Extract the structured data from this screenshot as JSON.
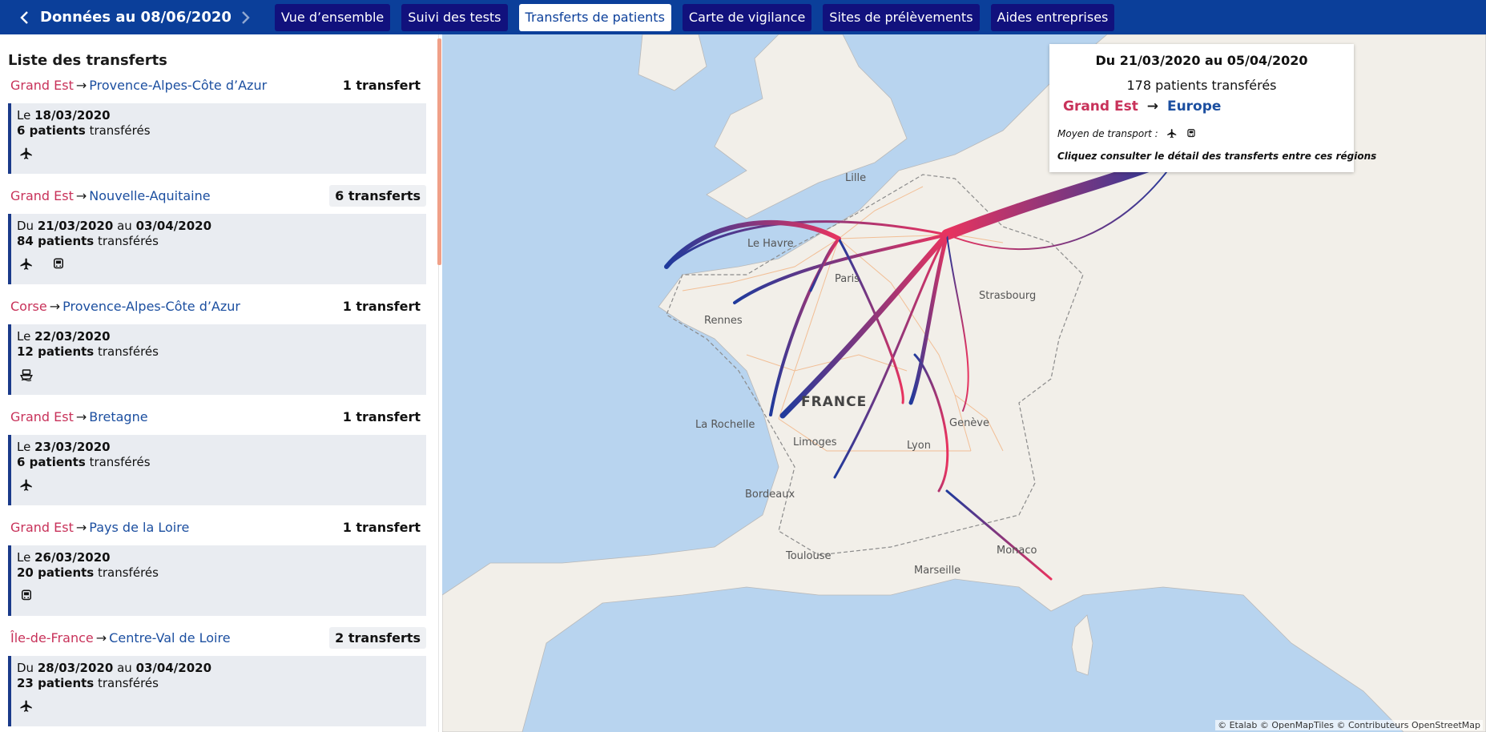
{
  "header": {
    "title": "Données au 08/06/2020",
    "tabs": [
      {
        "label": "Vue d’ensemble",
        "active": false
      },
      {
        "label": "Suivi des tests",
        "active": false
      },
      {
        "label": "Transferts de patients",
        "active": true
      },
      {
        "label": "Carte de vigilance",
        "active": false
      },
      {
        "label": "Sites de prélèvements",
        "active": false
      },
      {
        "label": "Aides entreprises",
        "active": false
      }
    ]
  },
  "sidebar": {
    "title": "Liste des transferts",
    "groups": [
      {
        "from": "Grand Est",
        "to": "Provence-Alpes-Côte d’Azur",
        "count": "1 transfert",
        "prefix": "Le",
        "date1": "18/03/2020",
        "mid": "",
        "date2": "",
        "patients": "6 patients",
        "suffix": "transférés",
        "icons": [
          "plane-icon"
        ]
      },
      {
        "from": "Grand Est",
        "to": "Nouvelle-Aquitaine",
        "count": "6 transferts",
        "prefix": "Du",
        "date1": "21/03/2020",
        "mid": "au",
        "date2": "03/04/2020",
        "patients": "84 patients",
        "suffix": "transférés",
        "icons": [
          "plane-icon",
          "train-icon"
        ]
      },
      {
        "from": "Corse",
        "to": "Provence-Alpes-Côte d’Azur",
        "count": "1 transfert",
        "prefix": "Le",
        "date1": "22/03/2020",
        "mid": "",
        "date2": "",
        "patients": "12 patients",
        "suffix": "transférés",
        "icons": [
          "boat-icon"
        ]
      },
      {
        "from": "Grand Est",
        "to": "Bretagne",
        "count": "1 transfert",
        "prefix": "Le",
        "date1": "23/03/2020",
        "mid": "",
        "date2": "",
        "patients": "6 patients",
        "suffix": "transférés",
        "icons": [
          "plane-icon"
        ]
      },
      {
        "from": "Grand Est",
        "to": "Pays de la Loire",
        "count": "1 transfert",
        "prefix": "Le",
        "date1": "26/03/2020",
        "mid": "",
        "date2": "",
        "patients": "20 patients",
        "suffix": "transférés",
        "icons": [
          "train-icon"
        ]
      },
      {
        "from": "Île-de-France",
        "to": "Centre-Val de Loire",
        "count": "2 transferts",
        "prefix": "Du",
        "date1": "28/03/2020",
        "mid": "au",
        "date2": "03/04/2020",
        "patients": "23 patients",
        "suffix": "transférés",
        "icons": [
          "plane-icon"
        ]
      }
    ]
  },
  "popup": {
    "period": "Du 21/03/2020 au 05/04/2020",
    "count": "178 patients transférés",
    "from": "Grand Est",
    "arrow": "→",
    "to": "Europe",
    "transport_label": "Moyen de transport :",
    "transport_icons": [
      "plane-icon",
      "train-icon"
    ],
    "hint": "Cliquez consulter le détail des transferts entre ces régions"
  },
  "map": {
    "cities": [
      "Lille",
      "Le Havre",
      "Paris",
      "Strasbourg",
      "Rennes",
      "La Rochelle",
      "Limoges",
      "Lyon",
      "Genève",
      "Bordeaux",
      "Toulouse",
      "Marseille",
      "Monaco"
    ],
    "country": "FRANCE",
    "attribution": "© Etalab © OpenMapTiles © Contributeurs OpenStreetMap"
  },
  "colors": {
    "topbar": "#0b3f9a",
    "tab": "#11117d",
    "from": "#c8325a",
    "to": "#1c4fa0"
  }
}
